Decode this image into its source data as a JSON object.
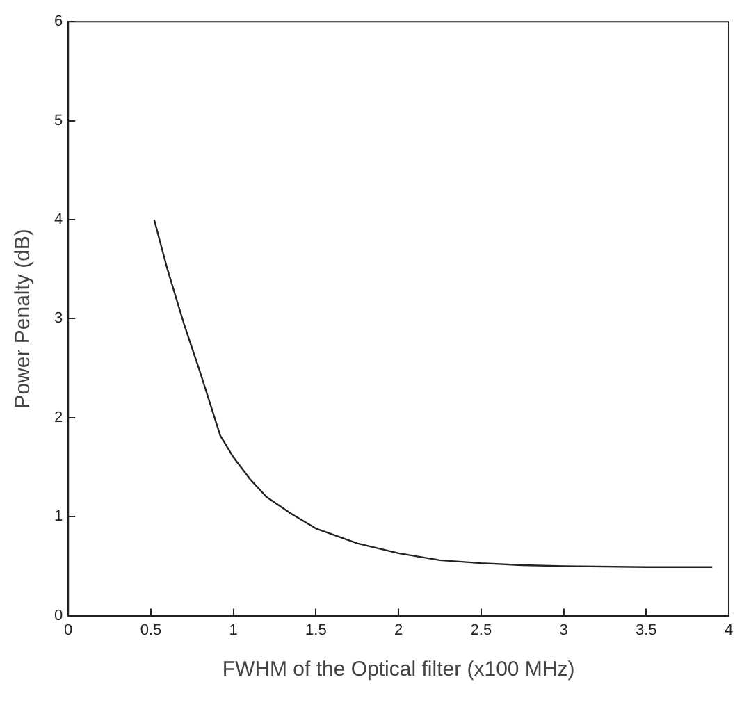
{
  "chart_data": {
    "type": "line",
    "xlabel": "FWHM of the Optical filter (x100 MHz)",
    "ylabel": "Power Penalty (dB)",
    "xlim": [
      0,
      4
    ],
    "xticks": [
      0,
      0.5,
      1,
      1.5,
      2,
      2.5,
      3,
      3.5,
      4
    ],
    "ylim": [
      0,
      6
    ],
    "yticks": [
      0,
      1,
      2,
      3,
      4,
      5,
      6
    ],
    "grid": false,
    "legend": false,
    "marker": "none",
    "line_style": "solid",
    "series": [
      {
        "color": "#222222",
        "x": [
          0.52,
          0.6,
          0.7,
          0.8,
          0.92,
          1.0,
          1.1,
          1.2,
          1.35,
          1.5,
          1.75,
          2.0,
          2.25,
          2.5,
          2.75,
          3.0,
          3.5,
          3.9
        ],
        "values": [
          4.0,
          3.5,
          2.95,
          2.45,
          1.82,
          1.6,
          1.38,
          1.2,
          1.03,
          0.88,
          0.73,
          0.63,
          0.56,
          0.53,
          0.51,
          0.5,
          0.49,
          0.49
        ]
      }
    ]
  }
}
